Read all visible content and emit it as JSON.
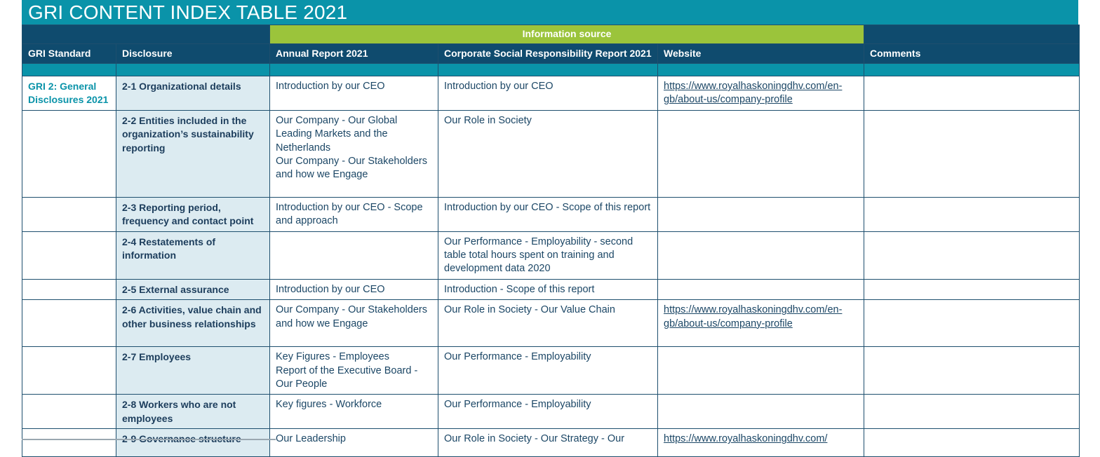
{
  "title": "GRI CONTENT INDEX TABLE 2021",
  "header": {
    "information_source": "Information source",
    "columns": [
      "GRI Standard",
      "Disclosure",
      "Annual Report 2021",
      "Corporate Social Responsibility Report 2021",
      "Website",
      "Comments"
    ]
  },
  "rows": [
    {
      "standard": "GRI 2: General Disclosures 2021",
      "disclosure": "2-1 Organizational details",
      "annual": "Introduction by our CEO",
      "csr": "Introduction by our CEO",
      "website": "https://www.royalhaskoningdhv.com/en-gb/about-us/company-profile",
      "comments": ""
    },
    {
      "standard": "",
      "disclosure": "2-2 Entities included in the organization’s sustainability reporting",
      "annual": "Our Company - Our Global Leading Markets and the Netherlands\nOur Company - Our Stakeholders and how we Engage",
      "csr": "Our Role in Society",
      "website": "",
      "comments": ""
    },
    {
      "standard": "",
      "disclosure": "2-3 Reporting period, frequency and contact point",
      "annual": "Introduction by our CEO - Scope and approach",
      "csr": "Introduction by our CEO - Scope of this report",
      "website": "",
      "comments": ""
    },
    {
      "standard": "",
      "disclosure": "2-4 Restatements of information",
      "annual": "",
      "csr": "Our Performance - Employability - second table total hours spent on training and development data 2020",
      "website": "",
      "comments": ""
    },
    {
      "standard": "",
      "disclosure": "2-5 External assurance",
      "annual": "Introduction by our CEO",
      "csr": "Introduction - Scope of this report",
      "website": "",
      "comments": ""
    },
    {
      "standard": "",
      "disclosure": "2-6 Activities, value chain and other business relationships",
      "annual": "Our Company - Our Stakeholders and how we Engage",
      "csr": "Our Role in Society - Our Value Chain",
      "website": "https://www.royalhaskoningdhv.com/en-gb/about-us/company-profile",
      "comments": ""
    },
    {
      "standard": "",
      "disclosure": "2-7 Employees",
      "annual": "Key Figures - Employees\nReport of the Executive Board - Our People",
      "csr": "Our Performance - Employability",
      "website": "",
      "comments": ""
    },
    {
      "standard": "",
      "disclosure": "2-8 Workers who are not employees",
      "annual": "Key figures - Workforce",
      "csr": "Our Performance - Employability",
      "website": "",
      "comments": ""
    },
    {
      "standard": "",
      "disclosure": "2-9 Governance structure",
      "annual": "Our Leadership",
      "csr": "Our Role in Society - Our Strategy - Our",
      "website": "https://www.royalhaskoningdhv.com/",
      "comments": ""
    }
  ]
}
